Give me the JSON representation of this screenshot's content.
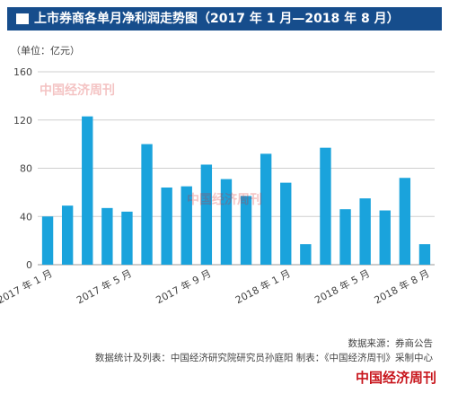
{
  "header": {
    "title": "上市券商各单月净利润走势图（2017 年 1 月—2018 年 8 月）"
  },
  "unit_label": "（单位：亿元）",
  "watermark": "中国经济周刊",
  "footer": {
    "source": "数据来源：券商公告",
    "credits": "数据统计及列表：中国经济研究院研究员孙庭阳  制表：《中国经济周刊》采制中心",
    "brand": "中国经济周刊"
  },
  "colors": {
    "bar": "#1aa3dc",
    "title_bg": "#164d8c",
    "grid": "#cfcfcf",
    "brand": "#c8161d"
  },
  "chart_data": {
    "type": "bar",
    "ylim": [
      0,
      160
    ],
    "yticks": [
      0,
      40,
      80,
      120,
      160
    ],
    "grid": true,
    "categories": [
      "2017年1月",
      "2017年2月",
      "2017年3月",
      "2017年4月",
      "2017年5月",
      "2017年6月",
      "2017年7月",
      "2017年8月",
      "2017年9月",
      "2017年10月",
      "2017年11月",
      "2017年12月",
      "2018年1月",
      "2018年2月",
      "2018年3月",
      "2018年4月",
      "2018年5月",
      "2018年6月",
      "2018年7月",
      "2018年8月"
    ],
    "values": [
      40,
      49,
      123,
      47,
      44,
      100,
      64,
      65,
      83,
      71,
      57,
      92,
      68,
      17,
      97,
      46,
      55,
      45,
      72,
      17
    ],
    "shown_xticks": [
      {
        "index": 0,
        "label": "2017 年 1 月"
      },
      {
        "index": 4,
        "label": "2017 年 5 月"
      },
      {
        "index": 8,
        "label": "2017 年 9 月"
      },
      {
        "index": 12,
        "label": "2018 年 1 月"
      },
      {
        "index": 16,
        "label": "2018 年 5 月"
      },
      {
        "index": 19,
        "label": "2018 年 8 月"
      }
    ]
  }
}
